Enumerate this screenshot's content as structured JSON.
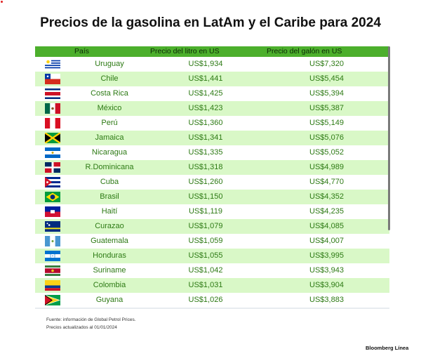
{
  "title": "Precios de la gasolina en LatAm y el Caribe para 2024",
  "headers": [
    "País",
    "Precio del litro en US",
    "Precio del galón en US"
  ],
  "rows": [
    {
      "country": "Uruguay",
      "litro": "US$1,934",
      "galon": "US$7,320",
      "flag": "uruguay-flag-icon"
    },
    {
      "country": "Chile",
      "litro": "US$1,441",
      "galon": "US$5,454",
      "flag": "chile-flag-icon"
    },
    {
      "country": "Costa Rica",
      "litro": "US$1,425",
      "galon": "US$5,394",
      "flag": "costa-rica-flag-icon"
    },
    {
      "country": "México",
      "litro": "US$1,423",
      "galon": "US$5,387",
      "flag": "mexico-flag-icon"
    },
    {
      "country": "Perú",
      "litro": "US$1,360",
      "galon": "US$5,149",
      "flag": "peru-flag-icon"
    },
    {
      "country": "Jamaica",
      "litro": "US$1,341",
      "galon": "US$5,076",
      "flag": "jamaica-flag-icon"
    },
    {
      "country": "Nicaragua",
      "litro": "US$1,335",
      "galon": "US$5,052",
      "flag": "nicaragua-flag-icon"
    },
    {
      "country": "R.Dominicana",
      "litro": "US$1,318",
      "galon": "US$4,989",
      "flag": "dominican-republic-flag-icon"
    },
    {
      "country": "Cuba",
      "litro": "US$1,260",
      "galon": "US$4,770",
      "flag": "cuba-flag-icon"
    },
    {
      "country": "Brasil",
      "litro": "US$1,150",
      "galon": "US$4,352",
      "flag": "brazil-flag-icon"
    },
    {
      "country": "Haití",
      "litro": "US$1,119",
      "galon": "US$4,235",
      "flag": "haiti-flag-icon"
    },
    {
      "country": "Curazao",
      "litro": "US$1,079",
      "galon": "US$4,085",
      "flag": "curacao-flag-icon"
    },
    {
      "country": "Guatemala",
      "litro": "US$1,059",
      "galon": "US$4,007",
      "flag": "guatemala-flag-icon"
    },
    {
      "country": "Honduras",
      "litro": "US$1,055",
      "galon": "US$3,995",
      "flag": "honduras-flag-icon"
    },
    {
      "country": "Suriname",
      "litro": "US$1,042",
      "galon": "US$3,943",
      "flag": "suriname-flag-icon"
    },
    {
      "country": "Colombia",
      "litro": "US$1,031",
      "galon": "US$3,904",
      "flag": "colombia-flag-icon"
    },
    {
      "country": "Guyana",
      "litro": "US$1,026",
      "galon": "US$3,883",
      "flag": "guyana-flag-icon"
    }
  ],
  "source_line1": "Fuente: información de Global Petrol Prices.",
  "source_line2": "Precios actualizados al 01/01/2024",
  "brand": "Bloomberg Línea",
  "chart_data": {
    "type": "table",
    "title": "Precios de la gasolina en LatAm y el Caribe para 2024",
    "columns": [
      "País",
      "Precio del litro en US",
      "Precio del galón en US"
    ],
    "categories": [
      "Uruguay",
      "Chile",
      "Costa Rica",
      "México",
      "Perú",
      "Jamaica",
      "Nicaragua",
      "R.Dominicana",
      "Cuba",
      "Brasil",
      "Haití",
      "Curazao",
      "Guatemala",
      "Honduras",
      "Suriname",
      "Colombia",
      "Guyana"
    ],
    "series": [
      {
        "name": "Precio del litro en US",
        "values": [
          1.934,
          1.441,
          1.425,
          1.423,
          1.36,
          1.341,
          1.335,
          1.318,
          1.26,
          1.15,
          1.119,
          1.079,
          1.059,
          1.055,
          1.042,
          1.031,
          1.026
        ]
      },
      {
        "name": "Precio del galón en US",
        "values": [
          7.32,
          5.454,
          5.394,
          5.387,
          5.149,
          5.076,
          5.052,
          4.989,
          4.77,
          4.352,
          4.235,
          4.085,
          4.007,
          3.995,
          3.943,
          3.904,
          3.883
        ]
      }
    ]
  }
}
